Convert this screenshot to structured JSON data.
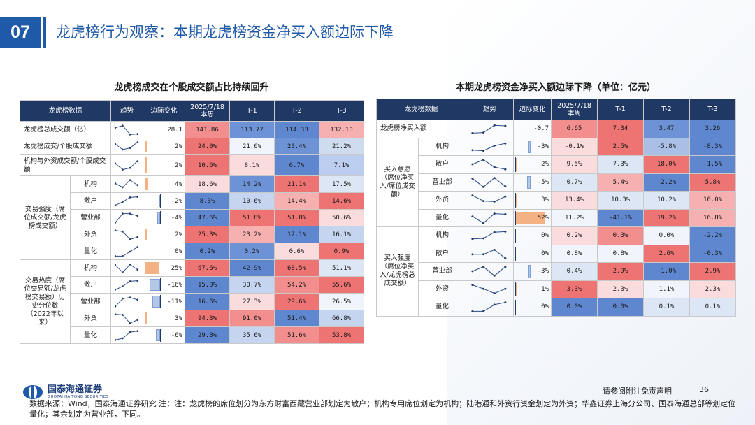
{
  "header": {
    "number": "07",
    "title": "龙虎榜行为观察：本期龙虎榜资金净买入额边际下降"
  },
  "left_table": {
    "title": "龙虎榜成交在个股成交额占比持续回升",
    "headers": [
      "龙虎榜数据",
      "趋势",
      "边际变化",
      "2025/7/18\n本周",
      "T-1",
      "T-2",
      "T-3"
    ],
    "rows": [
      {
        "group": "",
        "label": "龙虎榜总成交额（亿）",
        "change": "28.1",
        "change_pct": 0,
        "cells": [
          "141.86",
          "113.77",
          "114.38",
          "132.10"
        ],
        "colors": [
          "#f28e8e",
          "#6d93d6",
          "#5f87cf",
          "#f6b0b0"
        ],
        "trend": [
          0.3,
          0.1,
          0.9,
          0.85
        ]
      },
      {
        "group": "",
        "label": "龙虎榜成交/个股成交额",
        "change": "2%",
        "change_pct": 2,
        "cells": [
          "24.0%",
          "21.6%",
          "20.4%",
          "21.2%"
        ],
        "colors": [
          "#ee7474",
          "#f1f5fb",
          "#6d93d6",
          "#cfdcf0"
        ],
        "trend": [
          0.25,
          0.75,
          0.6,
          0.1
        ]
      },
      {
        "group": "",
        "label": "机构与外资成交额/个股成交额",
        "change": "2%",
        "change_pct": 2,
        "cells": [
          "10.6%",
          "8.1%",
          "6.7%",
          "7.1%"
        ],
        "colors": [
          "#ee7474",
          "#fbdcdc",
          "#5f87cf",
          "#bccef0"
        ],
        "trend": [
          0.3,
          0.85,
          0.7,
          0.1
        ]
      },
      {
        "group": "交易强度（席位成交额/龙虎榜成交额）",
        "label": "机构",
        "change": "4%",
        "change_pct": 4,
        "cells": [
          "18.6%",
          "14.2%",
          "21.1%",
          "17.5%"
        ],
        "colors": [
          "#fbdcdc",
          "#6d93d6",
          "#ee7474",
          "#dde6f5"
        ],
        "trend": [
          0.4,
          0.75,
          0.1,
          0.55
        ]
      },
      {
        "group": "",
        "label": "散户",
        "change": "-2%",
        "change_pct": -2,
        "cells": [
          "8.3%",
          "10.6%",
          "14.4%",
          "14.6%"
        ],
        "colors": [
          "#5f87cf",
          "#c5d5ef",
          "#f6b0b0",
          "#ee7474"
        ],
        "trend": [
          0.85,
          0.55,
          0.15,
          0.1
        ]
      },
      {
        "group": "",
        "label": "营业部",
        "change": "-4%",
        "change_pct": -4,
        "cells": [
          "47.6%",
          "51.8%",
          "51.8%",
          "50.6%"
        ],
        "colors": [
          "#5f87cf",
          "#ee7474",
          "#ee7474",
          "#fbdcdc"
        ],
        "trend": [
          0.9,
          0.1,
          0.1,
          0.3
        ]
      },
      {
        "group": "",
        "label": "外资",
        "change": "2%",
        "change_pct": 2,
        "cells": [
          "25.3%",
          "23.2%",
          "12.1%",
          "16.1%"
        ],
        "colors": [
          "#ee7474",
          "#f6b0b0",
          "#5f87cf",
          "#c5d5ef"
        ],
        "trend": [
          0.1,
          0.2,
          0.9,
          0.7
        ]
      },
      {
        "group": "",
        "label": "量化",
        "change": "0%",
        "change_pct": 0,
        "cells": [
          "0.2%",
          "0.2%",
          "0.6%",
          "0.9%"
        ],
        "colors": [
          "#5f87cf",
          "#6d93d6",
          "#fbdcdc",
          "#ee7474"
        ],
        "trend": [
          0.9,
          0.9,
          0.5,
          0.1
        ]
      },
      {
        "group": "交易热度（席位交易额/龙虎榜交易额）历史分位数（2022年以来）",
        "label": "机构",
        "change": "25%",
        "change_pct": 25,
        "cells": [
          "67.6%",
          "42.9%",
          "68.5%",
          "51.1%"
        ],
        "colors": [
          "#ee7474",
          "#5f87cf",
          "#ee7474",
          "#dde6f5"
        ],
        "trend": [
          0.2,
          0.85,
          0.15,
          0.6
        ]
      },
      {
        "group": "",
        "label": "散户",
        "change": "-16%",
        "change_pct": -16,
        "cells": [
          "15.0%",
          "30.7%",
          "54.2%",
          "55.6%"
        ],
        "colors": [
          "#5f87cf",
          "#c5d5ef",
          "#f28e8e",
          "#ee7474"
        ],
        "trend": [
          0.9,
          0.6,
          0.15,
          0.1
        ]
      },
      {
        "group": "",
        "label": "营业部",
        "change": "-11%",
        "change_pct": -11,
        "cells": [
          "16.6%",
          "27.3%",
          "29.6%",
          "26.5%"
        ],
        "colors": [
          "#5f87cf",
          "#fbdcdc",
          "#ee7474",
          "#f1f5fb"
        ],
        "trend": [
          0.9,
          0.2,
          0.1,
          0.3
        ]
      },
      {
        "group": "",
        "label": "外资",
        "change": "3%",
        "change_pct": 3,
        "cells": [
          "94.3%",
          "91.0%",
          "51.4%",
          "66.8%"
        ],
        "colors": [
          "#ee7474",
          "#f28e8e",
          "#5f87cf",
          "#c5d5ef"
        ],
        "trend": [
          0.1,
          0.15,
          0.9,
          0.6
        ]
      },
      {
        "group": "",
        "label": "量化",
        "change": "-6%",
        "change_pct": -6,
        "cells": [
          "29.8%",
          "35.6%",
          "51.6%",
          "53.8%"
        ],
        "colors": [
          "#5f87cf",
          "#c5d5ef",
          "#f28e8e",
          "#ee7474"
        ],
        "trend": [
          0.9,
          0.75,
          0.2,
          0.1
        ]
      }
    ]
  },
  "right_table": {
    "title": "本期龙虎榜资金净买入额边际下降（单位：亿元）",
    "headers": [
      "龙虎榜数据",
      "趋势",
      "边际变化",
      "2025/7/18\n本周",
      "T-1",
      "T-2",
      "T-3"
    ],
    "rows": [
      {
        "group": "",
        "label": "龙虎榜净买入额",
        "change": "-0.7",
        "change_pct": 0,
        "cells": [
          "6.65",
          "7.34",
          "3.47",
          "3.26"
        ],
        "colors": [
          "#f28e8e",
          "#ee7474",
          "#6d93d6",
          "#5f87cf"
        ],
        "trend": [
          0.9,
          0.85,
          0.2,
          0.25
        ]
      },
      {
        "group": "买入意愿（席位净买入/席位成交额）",
        "label": "机构",
        "change": "-3%",
        "change_pct": -3,
        "cells": [
          "-0.1%",
          "2.5%",
          "-5.8%",
          "-8.3%"
        ],
        "colors": [
          "#fbdcdc",
          "#ee7474",
          "#a9bfe6",
          "#5f87cf"
        ],
        "trend": [
          0.8,
          0.85,
          0.4,
          0.2
        ]
      },
      {
        "group": "",
        "label": "散户",
        "change": "2%",
        "change_pct": 2,
        "cells": [
          "9.5%",
          "7.3%",
          "18.0%",
          "-1.5%"
        ],
        "colors": [
          "#fbdcdc",
          "#dde6f5",
          "#ee7474",
          "#5f87cf"
        ],
        "trend": [
          0.5,
          0.1,
          0.75,
          0.95
        ]
      },
      {
        "group": "",
        "label": "营业部",
        "change": "-5%",
        "change_pct": -5,
        "cells": [
          "0.7%",
          "5.4%",
          "-2.2%",
          "5.8%"
        ],
        "colors": [
          "#dde6f5",
          "#f6b0b0",
          "#5f87cf",
          "#ee7474"
        ],
        "trend": [
          0.15,
          0.9,
          0.1,
          0.85
        ]
      },
      {
        "group": "",
        "label": "外资",
        "change": "3%",
        "change_pct": 3,
        "cells": [
          "13.4%",
          "10.3%",
          "10.2%",
          "16.0%"
        ],
        "colors": [
          "#fbdcdc",
          "#dde6f5",
          "#dde6f5",
          "#f6b0b0"
        ],
        "trend": [
          0.1,
          0.6,
          0.65,
          0.2
        ]
      },
      {
        "group": "",
        "label": "量化",
        "change": "52%",
        "change_pct": 52,
        "cells": [
          "11.2%",
          "-41.1%",
          "19.2%",
          "16.8%"
        ],
        "colors": [
          "#f1f5fb",
          "#5f87cf",
          "#ee7474",
          "#f6b0b0"
        ],
        "trend": [
          0.35,
          0.95,
          0.1,
          0.15
        ]
      },
      {
        "group": "买入强度（席位净买入/龙虎榜总成交额）",
        "label": "机构",
        "change": "0%",
        "change_pct": 0,
        "cells": [
          "0.2%",
          "0.3%",
          "0.0%",
          "-2.2%"
        ],
        "colors": [
          "#fbdcdc",
          "#f28e8e",
          "#f1f5fb",
          "#5f87cf"
        ],
        "trend": [
          0.8,
          0.75,
          0.2,
          0.15
        ]
      },
      {
        "group": "",
        "label": "散户",
        "change": "0%",
        "change_pct": 0,
        "cells": [
          "0.8%",
          "0.8%",
          "2.6%",
          "-0.3%"
        ],
        "colors": [
          "#f1f5fb",
          "#f1f5fb",
          "#ee7474",
          "#5f87cf"
        ],
        "trend": [
          0.55,
          0.55,
          0.15,
          0.9
        ]
      },
      {
        "group": "",
        "label": "营业部",
        "change": "-3%",
        "change_pct": -3,
        "cells": [
          "0.4%",
          "2.9%",
          "-1.0%",
          "2.9%"
        ],
        "colors": [
          "#dde6f5",
          "#ee7474",
          "#5f87cf",
          "#ee7474"
        ],
        "trend": [
          0.5,
          0.1,
          0.9,
          0.1
        ]
      },
      {
        "group": "",
        "label": "外资",
        "change": "1%",
        "change_pct": 1,
        "cells": [
          "3.3%",
          "2.3%",
          "1.1%",
          "2.3%"
        ],
        "colors": [
          "#ee7474",
          "#fbdcdc",
          "#f1f5fb",
          "#fbdcdc"
        ],
        "trend": [
          0.1,
          0.45,
          0.85,
          0.45
        ]
      },
      {
        "group": "",
        "label": "量化",
        "change": "0%",
        "change_pct": 0,
        "cells": [
          "0.0%",
          "0.0%",
          "0.1%",
          "0.1%"
        ],
        "colors": [
          "#5f87cf",
          "#5f87cf",
          "#dde6f5",
          "#dde6f5"
        ],
        "trend": [
          0.9,
          0.9,
          0.3,
          0.1
        ]
      }
    ]
  },
  "footer": {
    "logo_name": "国泰海通证券",
    "logo_en": "GUOTAI HAITONG SECURITIES",
    "disclaimer": "请参阅附注免责声明",
    "page": "36",
    "source": "数据来源：Wind，国泰海通证券研究 注：注：龙虎榜的席位划分为东方财富西藏营业部划定为散户；机构专用席位划定为机构；陆港通和外资行资金划定为外资；华鑫证券上海分公司、国泰海通总部等划定位量化；其余划定为营业部，下同。"
  },
  "style": {
    "accent": "#1f5aa8",
    "header_bg": "#1f3864",
    "pos_bar": "#f4b183",
    "neg_bar": "#b4c7e7"
  }
}
